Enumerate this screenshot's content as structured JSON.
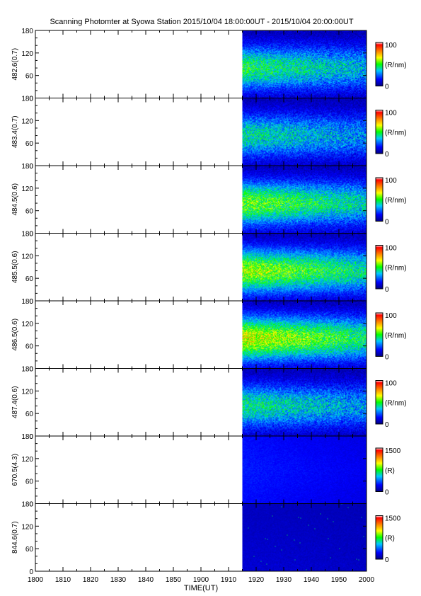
{
  "chart_data": {
    "type": "heatmap",
    "title": "Scanning Photomter at Syowa Station 2015/10/04 18:00:00UT - 2015/10/04 20:00:00UT",
    "xlabel": "TIME(UT)",
    "xlim": [
      1800,
      2000
    ],
    "x_ticks": [
      "1800",
      "1810",
      "1820",
      "1830",
      "1840",
      "1850",
      "1900",
      "1910",
      "1920",
      "1930",
      "1940",
      "1950",
      "2000"
    ],
    "data_start": "1915",
    "ylim": [
      0,
      180
    ],
    "y_ticks": [
      "0",
      "60",
      "120",
      "180"
    ],
    "grid": false,
    "panels": [
      {
        "ylabel": "482.6(0.7)",
        "colorbar_max": "100",
        "colorbar_min": "0",
        "colorbar_unit": "(R/nm)",
        "peak_fraction": 0.42,
        "profile": "wide"
      },
      {
        "ylabel": "483.4(0.7)",
        "colorbar_max": "100",
        "colorbar_min": "0",
        "colorbar_unit": "(R/nm)",
        "peak_fraction": 0.36,
        "profile": "wide"
      },
      {
        "ylabel": "484.5(0.6)",
        "colorbar_max": "100",
        "colorbar_min": "0",
        "colorbar_unit": "(R/nm)",
        "peak_fraction": 0.5,
        "profile": "wide"
      },
      {
        "ylabel": "485.5(0.6)",
        "colorbar_max": "100",
        "colorbar_min": "0",
        "colorbar_unit": "(R/nm)",
        "peak_fraction": 0.55,
        "profile": "wide"
      },
      {
        "ylabel": "486.5(0.6)",
        "colorbar_max": "100",
        "colorbar_min": "0",
        "colorbar_unit": "(R/nm)",
        "peak_fraction": 0.6,
        "profile": "wide"
      },
      {
        "ylabel": "487.4(0.6)",
        "colorbar_max": "100",
        "colorbar_min": "0",
        "colorbar_unit": "(R/nm)",
        "peak_fraction": 0.38,
        "profile": "wide"
      },
      {
        "ylabel": "670.5(4.3)",
        "colorbar_max": "1500",
        "colorbar_min": "0",
        "colorbar_unit": "(R)",
        "peak_fraction": 0.14,
        "profile": "flat"
      },
      {
        "ylabel": "844.6(0.7)",
        "colorbar_max": "1500",
        "colorbar_min": "0",
        "colorbar_unit": "(R)",
        "peak_fraction": 0.05,
        "profile": "dark"
      }
    ],
    "colormap": [
      "#000080",
      "#0000ff",
      "#00c8ff",
      "#00ff00",
      "#ffff00",
      "#ff8000",
      "#ff0000",
      "#ffffff"
    ]
  }
}
